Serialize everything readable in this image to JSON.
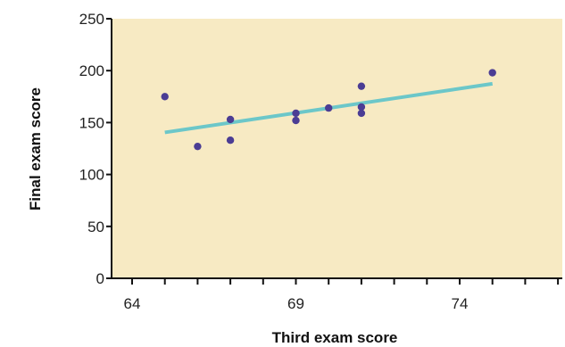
{
  "chart_data": {
    "type": "scatter",
    "title": "",
    "xlabel": "Third exam score",
    "ylabel": "Final exam score",
    "xlim": [
      63,
      77
    ],
    "ylim": [
      0,
      250
    ],
    "x_ticks": [
      64,
      65,
      66,
      67,
      68,
      69,
      70,
      71,
      72,
      73,
      74,
      75,
      76,
      77
    ],
    "x_tick_labels": [
      "64",
      "69",
      "74"
    ],
    "x_tick_label_values": [
      64,
      69,
      74
    ],
    "y_ticks": [
      0,
      50,
      100,
      150,
      200,
      250
    ],
    "y_tick_labels": [
      "0",
      "50",
      "100",
      "150",
      "200",
      "250"
    ],
    "grid": false,
    "points": [
      {
        "x": 65,
        "y": 175
      },
      {
        "x": 66,
        "y": 127
      },
      {
        "x": 67,
        "y": 133
      },
      {
        "x": 67,
        "y": 153
      },
      {
        "x": 69,
        "y": 152
      },
      {
        "x": 69,
        "y": 159
      },
      {
        "x": 70,
        "y": 164
      },
      {
        "x": 71,
        "y": 159
      },
      {
        "x": 71,
        "y": 165
      },
      {
        "x": 71,
        "y": 185
      },
      {
        "x": 75,
        "y": 198
      }
    ],
    "trend_line": {
      "x": [
        65,
        75
      ],
      "y": [
        140.5,
        187.4
      ]
    },
    "colors": {
      "plot_background": "#f7eac3",
      "points": "#4b3d94",
      "trend_line": "#6cc7c9",
      "axis": "#111111"
    }
  }
}
